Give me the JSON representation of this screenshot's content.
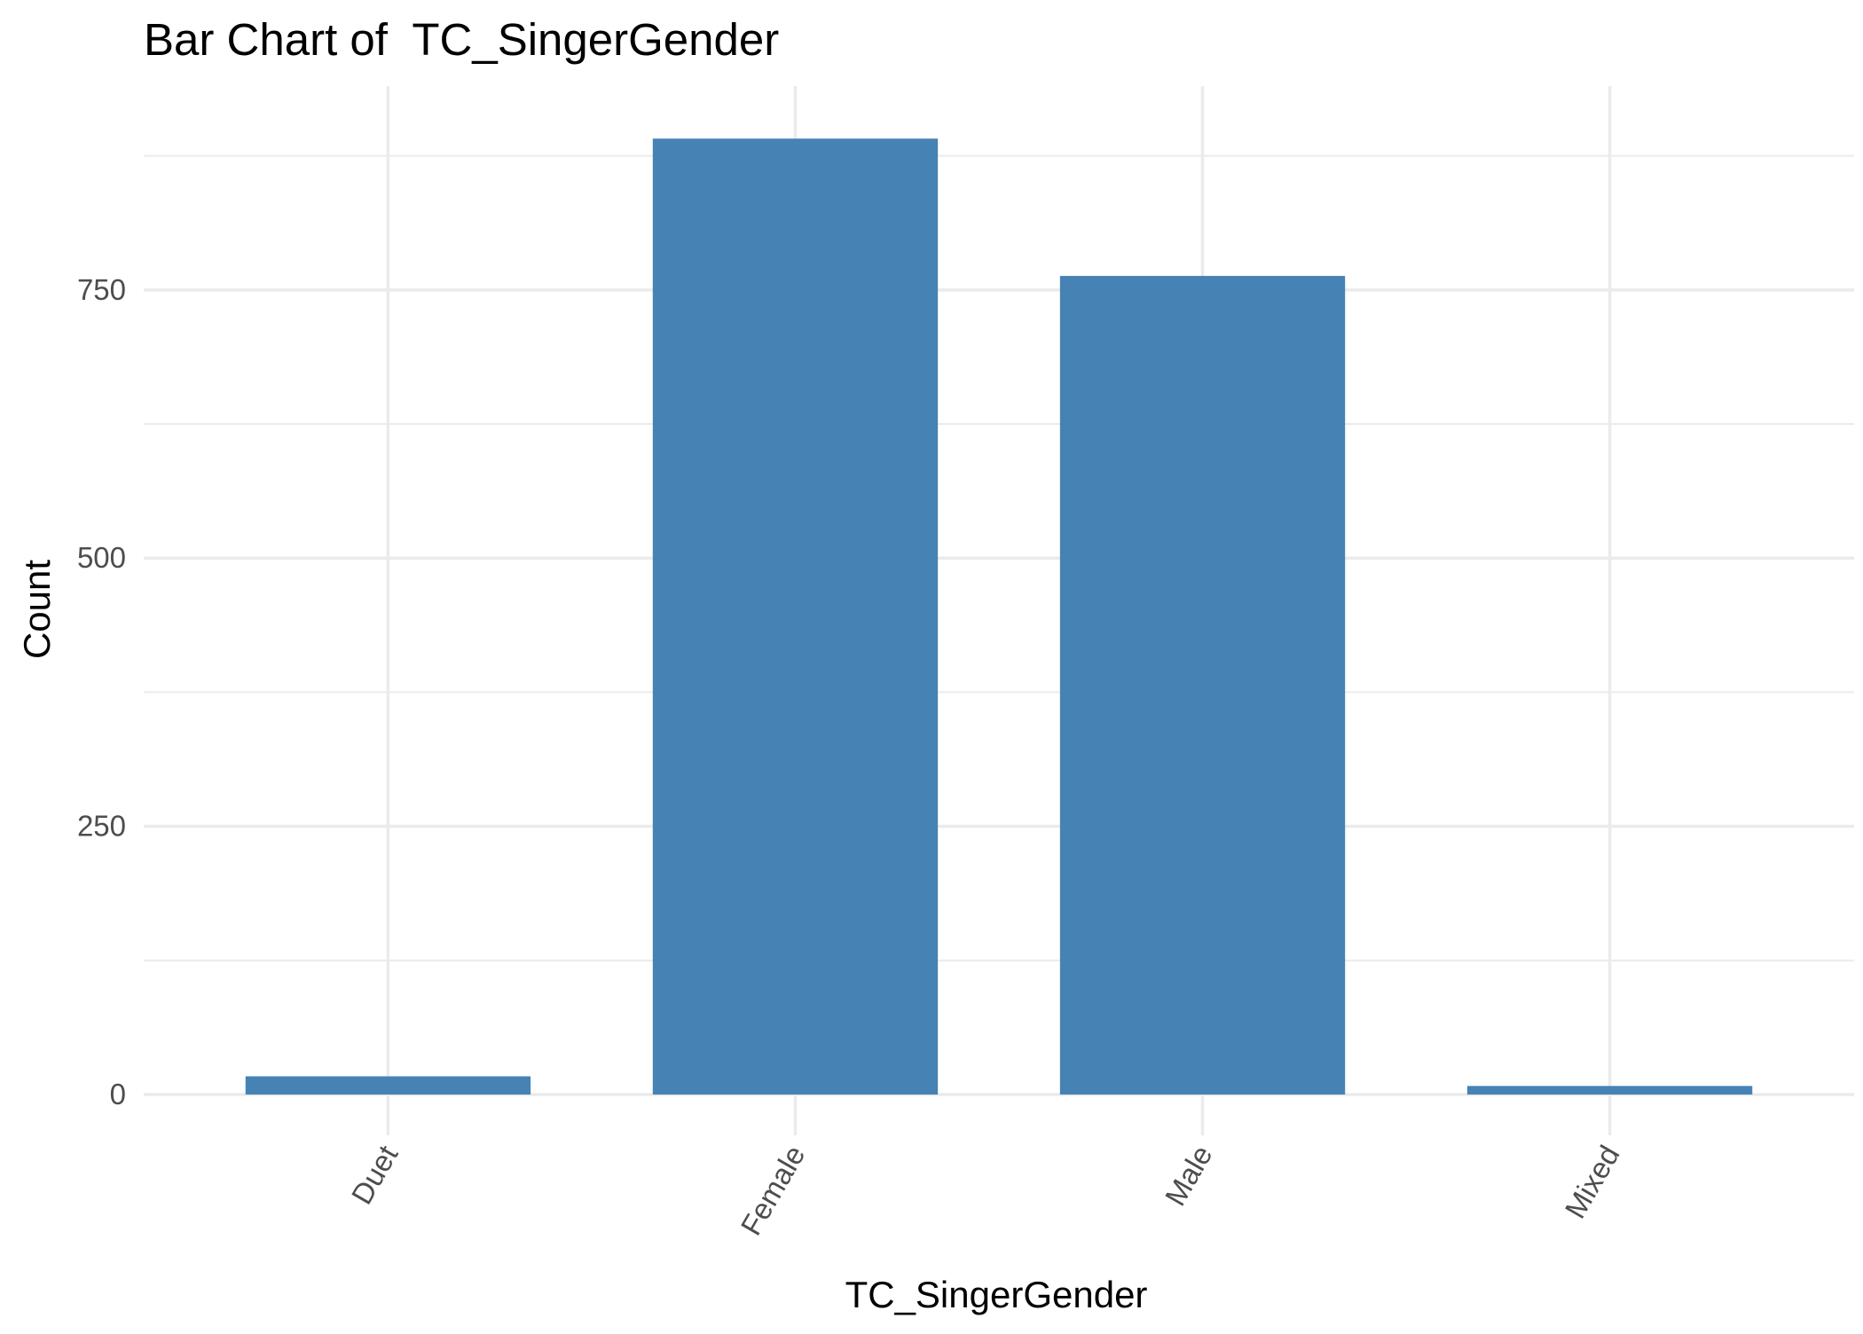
{
  "chart_data": {
    "type": "bar",
    "title": "Bar Chart of  TC_SingerGender",
    "xlabel": "TC_SingerGender",
    "ylabel": "Count",
    "categories": [
      "Duet",
      "Female",
      "Male",
      "Mixed"
    ],
    "values": [
      17,
      891,
      763,
      8
    ],
    "ylim": [
      -38,
      940
    ],
    "y_ticks": [
      0,
      250,
      500,
      750
    ],
    "y_minor_ticks": [
      125,
      375,
      625,
      875
    ],
    "grid": true,
    "legend": "none",
    "x_tick_rotation_deg": -60,
    "bar_color": "#4682b4",
    "grid_color": "#ebebeb",
    "background": "#ffffff"
  }
}
